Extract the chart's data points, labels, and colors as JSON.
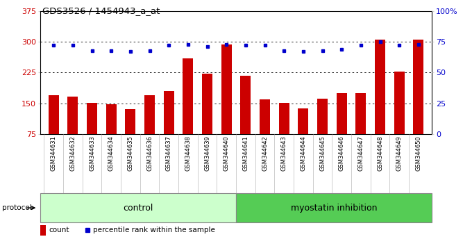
{
  "title": "GDS3526 / 1454943_a_at",
  "samples": [
    "GSM344631",
    "GSM344632",
    "GSM344633",
    "GSM344634",
    "GSM344635",
    "GSM344636",
    "GSM344637",
    "GSM344638",
    "GSM344639",
    "GSM344640",
    "GSM344641",
    "GSM344642",
    "GSM344643",
    "GSM344644",
    "GSM344645",
    "GSM344646",
    "GSM344647",
    "GSM344648",
    "GSM344649",
    "GSM344650"
  ],
  "counts": [
    170,
    167,
    151,
    148,
    136,
    170,
    180,
    260,
    222,
    293,
    218,
    160,
    151,
    138,
    162,
    175,
    175,
    305,
    228,
    305
  ],
  "percentiles": [
    72,
    72,
    68,
    68,
    67,
    68,
    72,
    73,
    71,
    73,
    72,
    72,
    68,
    67,
    68,
    69,
    72,
    75,
    72,
    73
  ],
  "bar_color": "#cc0000",
  "dot_color": "#0000cc",
  "y_min": 75,
  "y_max": 375,
  "y_left_ticks": [
    75,
    150,
    225,
    300,
    375
  ],
  "y_right_ticks_pct": [
    0,
    25,
    50,
    75,
    100
  ],
  "y_right_tick_labels": [
    "0",
    "25",
    "50",
    "75",
    "100%"
  ],
  "grid_lines": [
    150,
    225,
    300
  ],
  "control_n": 10,
  "protocol_label": "protocol",
  "control_label": "control",
  "myostatin_label": "myostatin inhibition",
  "legend_bar": "count",
  "legend_dot": "percentile rank within the sample",
  "bg_white": "#ffffff",
  "bg_label": "#d8d8d8",
  "bg_control": "#ccffcc",
  "bg_myostatin": "#55cc55"
}
